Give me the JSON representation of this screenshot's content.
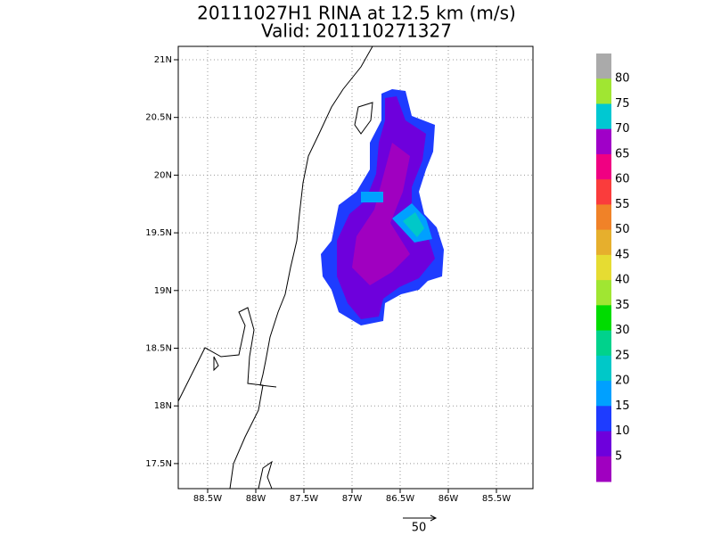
{
  "header": {
    "title": "20111027H1  RINA at 12.5 km  (m/s)",
    "subtitle": "Valid: 201110271327"
  },
  "map": {
    "lon_labels": [
      "88.5W",
      "88W",
      "87.5W",
      "87W",
      "86.5W",
      "86W",
      "85.5W"
    ],
    "lat_labels": [
      "21N",
      "20.5N",
      "20N",
      "19.5N",
      "19N",
      "18.5N",
      "18N",
      "17.5N"
    ]
  },
  "colorbar": {
    "labels": [
      80,
      75,
      70,
      65,
      60,
      55,
      50,
      45,
      40,
      35,
      30,
      25,
      20,
      15,
      10,
      5
    ],
    "colors": [
      "#aaaaaa",
      "#a0e632",
      "#00c8d2",
      "#a000c8",
      "#f00082",
      "#fa3c3c",
      "#f08228",
      "#e6af2d",
      "#e6dc32",
      "#a0e632",
      "#00dc00",
      "#00d28c",
      "#00c8c8",
      "#00a0ff",
      "#1e3cff",
      "#6e00dc",
      "#a000c0"
    ]
  },
  "vector_key": {
    "label": "50"
  }
}
